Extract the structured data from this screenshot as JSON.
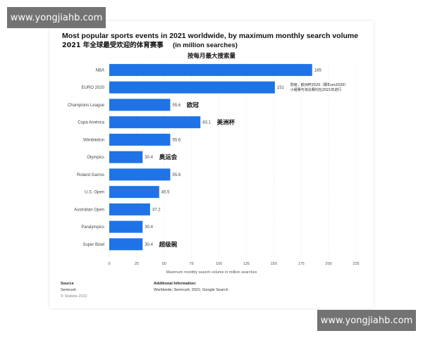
{
  "watermarks": {
    "top": "www.yongjiahb.com",
    "bottom": "www.yongjiahb.com"
  },
  "header": {
    "title_en": "Most popular sports events in 2021 worldwide, by maximum monthly search volume",
    "title_cn": "2021 年全球最受欢迎的体育赛事",
    "unit": "(in million searches)",
    "subtitle_cn": "按每月最大搜索量"
  },
  "chart_data": {
    "type": "bar",
    "orientation": "horizontal",
    "categories": [
      "NBA",
      "EURO 2020",
      "Champions League",
      "Copa América",
      "Wimbledon",
      "Olympics",
      "Roland Garros",
      "U.S. Open",
      "Australian Open",
      "Paralympics",
      "Super Bowl"
    ],
    "values": [
      185,
      151,
      55.6,
      83.1,
      55.6,
      30.4,
      55.6,
      45.5,
      37.2,
      30.4,
      30.4
    ],
    "value_labels": [
      "185",
      "151",
      "55.6",
      "83.1",
      "55.6",
      "30.4",
      "55.6",
      "45.5",
      "37.2",
      "30.4",
      "30.4"
    ],
    "xlabel": "Maximum monthly search volume in million searches",
    "xlim": [
      0,
      225
    ],
    "xticks": [
      "0",
      "25",
      "50",
      "75",
      "100",
      "125",
      "150",
      "175",
      "200",
      "225"
    ],
    "grid": true,
    "bar_color": "#1f73e6",
    "annotations": [
      {
        "category": "EURO 2020",
        "lines": [
          "防疫，欧洲杯2020（即Euro2020）",
          "小组赛与淘汰赛均在2021年进行"
        ]
      },
      {
        "category": "Champions League",
        "lines": [
          "欧冠"
        ]
      },
      {
        "category": "Copa América",
        "lines": [
          "美洲杯"
        ]
      },
      {
        "category": "Olympics",
        "lines": [
          "奥运会"
        ]
      },
      {
        "category": "Super Bowl",
        "lines": [
          "超级碗"
        ]
      }
    ]
  },
  "footer": {
    "source_title": "Source",
    "source_lines": [
      "Semrush",
      "© Statista 2022"
    ],
    "info_title": "Additional Information:",
    "info_text": "Worldwide; Semrush; 2021; Google Search"
  }
}
